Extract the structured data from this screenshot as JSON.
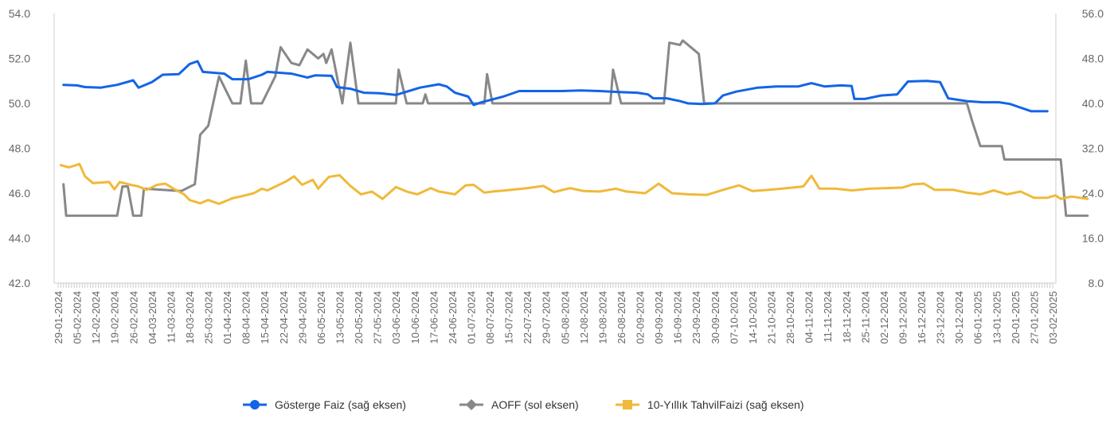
{
  "chart_data": {
    "type": "line",
    "title": "",
    "xlabel": "",
    "ylabel_left": "",
    "ylabel_right": "",
    "left_axis": {
      "ylim": [
        42,
        54
      ],
      "ticks": [
        "42.0",
        "44.0",
        "46.0",
        "48.0",
        "50.0",
        "52.0",
        "54.0"
      ]
    },
    "right_axis": {
      "ylim": [
        8,
        56
      ],
      "ticks": [
        "8.0",
        "16.0",
        "24.0",
        "32.0",
        "40.0",
        "48.0",
        "56.0"
      ]
    },
    "x_start": "2024-01-29",
    "x_end": "2025-02-03",
    "x_tick_labels": [
      "29-01-2024",
      "05-02-2024",
      "12-02-2024",
      "19-02-2024",
      "26-02-2024",
      "04-03-2024",
      "11-03-2024",
      "18-03-2024",
      "25-03-2024",
      "01-04-2024",
      "08-04-2024",
      "15-04-2024",
      "22-04-2024",
      "29-04-2024",
      "06-05-2024",
      "13-05-2024",
      "20-05-2024",
      "27-05-2024",
      "03-06-2024",
      "10-06-2024",
      "17-06-2024",
      "24-06-2024",
      "01-07-2024",
      "08-07-2024",
      "15-07-2024",
      "22-07-2024",
      "29-07-2024",
      "05-08-2024",
      "12-08-2024",
      "19-08-2024",
      "26-08-2024",
      "02-09-2024",
      "09-09-2024",
      "16-09-2024",
      "23-09-2024",
      "30-09-2024",
      "07-10-2024",
      "14-10-2024",
      "21-10-2024",
      "28-10-2024",
      "04-11-2024",
      "11-11-2024",
      "18-11-2024",
      "25-11-2024",
      "02-12-2024",
      "09-12-2024",
      "16-12-2024",
      "23-12-2024",
      "30-12-2024",
      "06-01-2025",
      "13-01-2025",
      "20-01-2025",
      "27-01-2025",
      "03-02-2025"
    ],
    "legend_position": "bottom",
    "series": [
      {
        "name": "Gösterge Faiz (sağ eksen)",
        "axis": "right",
        "color": "#1464e6",
        "marker": "circle",
        "points": [
          [
            "2024-01-31",
            43.3
          ],
          [
            "2024-02-05",
            43.2
          ],
          [
            "2024-02-08",
            42.9
          ],
          [
            "2024-02-14",
            42.8
          ],
          [
            "2024-02-20",
            43.3
          ],
          [
            "2024-02-26",
            44.1
          ],
          [
            "2024-02-28",
            42.8
          ],
          [
            "2024-03-04",
            43.8
          ],
          [
            "2024-03-08",
            45.1
          ],
          [
            "2024-03-14",
            45.2
          ],
          [
            "2024-03-18",
            47.0
          ],
          [
            "2024-03-21",
            47.5
          ],
          [
            "2024-03-23",
            45.6
          ],
          [
            "2024-03-31",
            45.3
          ],
          [
            "2024-04-03",
            44.3
          ],
          [
            "2024-04-09",
            44.3
          ],
          [
            "2024-04-14",
            45.1
          ],
          [
            "2024-04-16",
            45.6
          ],
          [
            "2024-04-25",
            45.3
          ],
          [
            "2024-05-01",
            44.6
          ],
          [
            "2024-05-04",
            45.0
          ],
          [
            "2024-05-10",
            44.9
          ],
          [
            "2024-05-12",
            42.9
          ],
          [
            "2024-05-17",
            42.6
          ],
          [
            "2024-05-22",
            41.9
          ],
          [
            "2024-05-28",
            41.8
          ],
          [
            "2024-06-03",
            41.5
          ],
          [
            "2024-06-12",
            42.8
          ],
          [
            "2024-06-19",
            43.4
          ],
          [
            "2024-06-22",
            43.0
          ],
          [
            "2024-06-25",
            41.9
          ],
          [
            "2024-06-30",
            41.2
          ],
          [
            "2024-07-02",
            39.7
          ],
          [
            "2024-07-05",
            40.2
          ],
          [
            "2024-07-13",
            41.2
          ],
          [
            "2024-07-19",
            42.2
          ],
          [
            "2024-07-26",
            42.2
          ],
          [
            "2024-08-04",
            42.2
          ],
          [
            "2024-08-11",
            42.3
          ],
          [
            "2024-08-18",
            42.2
          ],
          [
            "2024-08-26",
            42.0
          ],
          [
            "2024-09-01",
            41.9
          ],
          [
            "2024-09-05",
            41.6
          ],
          [
            "2024-09-07",
            40.9
          ],
          [
            "2024-09-12",
            40.9
          ],
          [
            "2024-09-17",
            40.4
          ],
          [
            "2024-09-20",
            40.0
          ],
          [
            "2024-09-25",
            39.9
          ],
          [
            "2024-09-30",
            40.0
          ],
          [
            "2024-10-03",
            41.4
          ],
          [
            "2024-10-08",
            42.1
          ],
          [
            "2024-10-16",
            42.8
          ],
          [
            "2024-10-23",
            43.0
          ],
          [
            "2024-10-31",
            43.0
          ],
          [
            "2024-11-05",
            43.6
          ],
          [
            "2024-11-10",
            43.0
          ],
          [
            "2024-11-16",
            43.2
          ],
          [
            "2024-11-20",
            43.1
          ],
          [
            "2024-11-21",
            40.8
          ],
          [
            "2024-11-25",
            40.8
          ],
          [
            "2024-12-01",
            41.4
          ],
          [
            "2024-12-07",
            41.6
          ],
          [
            "2024-12-11",
            43.9
          ],
          [
            "2024-12-18",
            44.0
          ],
          [
            "2024-12-23",
            43.8
          ],
          [
            "2024-12-26",
            40.9
          ],
          [
            "2025-01-02",
            40.4
          ],
          [
            "2025-01-08",
            40.2
          ],
          [
            "2025-01-14",
            40.2
          ],
          [
            "2025-01-18",
            39.9
          ],
          [
            "2025-01-26",
            38.6
          ],
          [
            "2025-02-01",
            38.6
          ]
        ]
      },
      {
        "name": "AOFF (sol eksen)",
        "axis": "left",
        "color": "#888888",
        "marker": "diamond",
        "points": [
          [
            "2024-01-31",
            46.4
          ],
          [
            "2024-02-01",
            45.0
          ],
          [
            "2024-02-20",
            45.0
          ],
          [
            "2024-02-22",
            46.3
          ],
          [
            "2024-02-24",
            46.3
          ],
          [
            "2024-02-26",
            45.0
          ],
          [
            "2024-02-29",
            45.0
          ],
          [
            "2024-03-01",
            46.2
          ],
          [
            "2024-03-15",
            46.1
          ],
          [
            "2024-03-20",
            46.4
          ],
          [
            "2024-03-22",
            48.6
          ],
          [
            "2024-03-25",
            49.0
          ],
          [
            "2024-03-29",
            51.2
          ],
          [
            "2024-04-03",
            50.0
          ],
          [
            "2024-04-06",
            50.0
          ],
          [
            "2024-04-08",
            51.9
          ],
          [
            "2024-04-10",
            50.0
          ],
          [
            "2024-04-14",
            50.0
          ],
          [
            "2024-04-19",
            51.2
          ],
          [
            "2024-04-21",
            52.5
          ],
          [
            "2024-04-25",
            51.8
          ],
          [
            "2024-04-28",
            51.7
          ],
          [
            "2024-05-01",
            52.4
          ],
          [
            "2024-05-05",
            52.0
          ],
          [
            "2024-05-07",
            52.2
          ],
          [
            "2024-05-08",
            51.8
          ],
          [
            "2024-05-10",
            52.4
          ],
          [
            "2024-05-14",
            50.0
          ],
          [
            "2024-05-17",
            52.7
          ],
          [
            "2024-05-20",
            50.0
          ],
          [
            "2024-06-03",
            50.0
          ],
          [
            "2024-06-04",
            51.5
          ],
          [
            "2024-06-07",
            50.0
          ],
          [
            "2024-06-13",
            50.0
          ],
          [
            "2024-06-14",
            50.4
          ],
          [
            "2024-06-15",
            50.0
          ],
          [
            "2024-07-06",
            50.0
          ],
          [
            "2024-07-07",
            51.3
          ],
          [
            "2024-07-09",
            50.0
          ],
          [
            "2024-08-22",
            50.0
          ],
          [
            "2024-08-23",
            51.5
          ],
          [
            "2024-08-26",
            50.0
          ],
          [
            "2024-09-11",
            50.0
          ],
          [
            "2024-09-13",
            52.7
          ],
          [
            "2024-09-17",
            52.6
          ],
          [
            "2024-09-18",
            52.8
          ],
          [
            "2024-09-24",
            52.2
          ],
          [
            "2024-09-26",
            50.0
          ],
          [
            "2025-01-02",
            50.0
          ],
          [
            "2025-01-04",
            49.2
          ],
          [
            "2025-01-07",
            48.1
          ],
          [
            "2025-01-15",
            48.1
          ],
          [
            "2025-01-16",
            47.5
          ],
          [
            "2025-02-06",
            47.5
          ],
          [
            "2025-02-08",
            45.0
          ],
          [
            "2025-02-16",
            45.0
          ]
        ]
      },
      {
        "name": "10-Yıllık TahvilFaizi (sağ eksen)",
        "axis": "right",
        "color": "#f0b93a",
        "marker": "square",
        "points": [
          [
            "2024-01-30",
            29.0
          ],
          [
            "2024-02-02",
            28.6
          ],
          [
            "2024-02-06",
            29.2
          ],
          [
            "2024-02-08",
            27.0
          ],
          [
            "2024-02-11",
            25.8
          ],
          [
            "2024-02-17",
            26.0
          ],
          [
            "2024-02-19",
            24.7
          ],
          [
            "2024-02-21",
            26.0
          ],
          [
            "2024-02-25",
            25.5
          ],
          [
            "2024-02-28",
            25.2
          ],
          [
            "2024-03-02",
            24.6
          ],
          [
            "2024-03-06",
            25.5
          ],
          [
            "2024-03-09",
            25.7
          ],
          [
            "2024-03-12",
            24.8
          ],
          [
            "2024-03-16",
            23.8
          ],
          [
            "2024-03-18",
            22.8
          ],
          [
            "2024-03-22",
            22.2
          ],
          [
            "2024-03-25",
            22.8
          ],
          [
            "2024-03-29",
            22.1
          ],
          [
            "2024-04-03",
            23.1
          ],
          [
            "2024-04-06",
            23.4
          ],
          [
            "2024-04-11",
            24.0
          ],
          [
            "2024-04-14",
            24.8
          ],
          [
            "2024-04-16",
            24.5
          ],
          [
            "2024-04-20",
            25.4
          ],
          [
            "2024-04-23",
            26.1
          ],
          [
            "2024-04-26",
            27.0
          ],
          [
            "2024-04-29",
            25.5
          ],
          [
            "2024-05-03",
            26.4
          ],
          [
            "2024-05-05",
            24.8
          ],
          [
            "2024-05-09",
            26.9
          ],
          [
            "2024-05-13",
            27.2
          ],
          [
            "2024-05-17",
            25.3
          ],
          [
            "2024-05-21",
            23.8
          ],
          [
            "2024-05-25",
            24.3
          ],
          [
            "2024-05-29",
            23.0
          ],
          [
            "2024-06-03",
            25.1
          ],
          [
            "2024-06-07",
            24.3
          ],
          [
            "2024-06-11",
            23.8
          ],
          [
            "2024-06-16",
            24.9
          ],
          [
            "2024-06-19",
            24.3
          ],
          [
            "2024-06-25",
            23.8
          ],
          [
            "2024-06-29",
            25.4
          ],
          [
            "2024-07-02",
            25.5
          ],
          [
            "2024-07-06",
            24.1
          ],
          [
            "2024-07-09",
            24.3
          ],
          [
            "2024-07-16",
            24.6
          ],
          [
            "2024-07-22",
            24.9
          ],
          [
            "2024-07-28",
            25.3
          ],
          [
            "2024-08-01",
            24.2
          ],
          [
            "2024-08-07",
            24.9
          ],
          [
            "2024-08-12",
            24.4
          ],
          [
            "2024-08-18",
            24.3
          ],
          [
            "2024-08-24",
            24.8
          ],
          [
            "2024-08-28",
            24.3
          ],
          [
            "2024-09-04",
            24.0
          ],
          [
            "2024-09-09",
            25.7
          ],
          [
            "2024-09-14",
            24.0
          ],
          [
            "2024-09-20",
            23.8
          ],
          [
            "2024-09-27",
            23.7
          ],
          [
            "2024-10-03",
            24.6
          ],
          [
            "2024-10-09",
            25.4
          ],
          [
            "2024-10-14",
            24.4
          ],
          [
            "2024-10-20",
            24.6
          ],
          [
            "2024-10-27",
            24.9
          ],
          [
            "2024-11-02",
            25.2
          ],
          [
            "2024-11-05",
            27.1
          ],
          [
            "2024-11-08",
            24.8
          ],
          [
            "2024-11-14",
            24.8
          ],
          [
            "2024-11-20",
            24.5
          ],
          [
            "2024-11-27",
            24.8
          ],
          [
            "2024-12-03",
            24.9
          ],
          [
            "2024-12-09",
            25.0
          ],
          [
            "2024-12-13",
            25.6
          ],
          [
            "2024-12-17",
            25.7
          ],
          [
            "2024-12-21",
            24.6
          ],
          [
            "2024-12-28",
            24.6
          ],
          [
            "2025-01-02",
            24.1
          ],
          [
            "2025-01-07",
            23.8
          ],
          [
            "2025-01-12",
            24.5
          ],
          [
            "2025-01-17",
            23.8
          ],
          [
            "2025-01-22",
            24.3
          ],
          [
            "2025-01-27",
            23.2
          ],
          [
            "2025-02-01",
            23.2
          ],
          [
            "2025-02-04",
            23.6
          ],
          [
            "2025-02-06",
            23.0
          ],
          [
            "2025-02-10",
            23.4
          ],
          [
            "2025-02-16",
            23.0
          ]
        ]
      }
    ]
  }
}
